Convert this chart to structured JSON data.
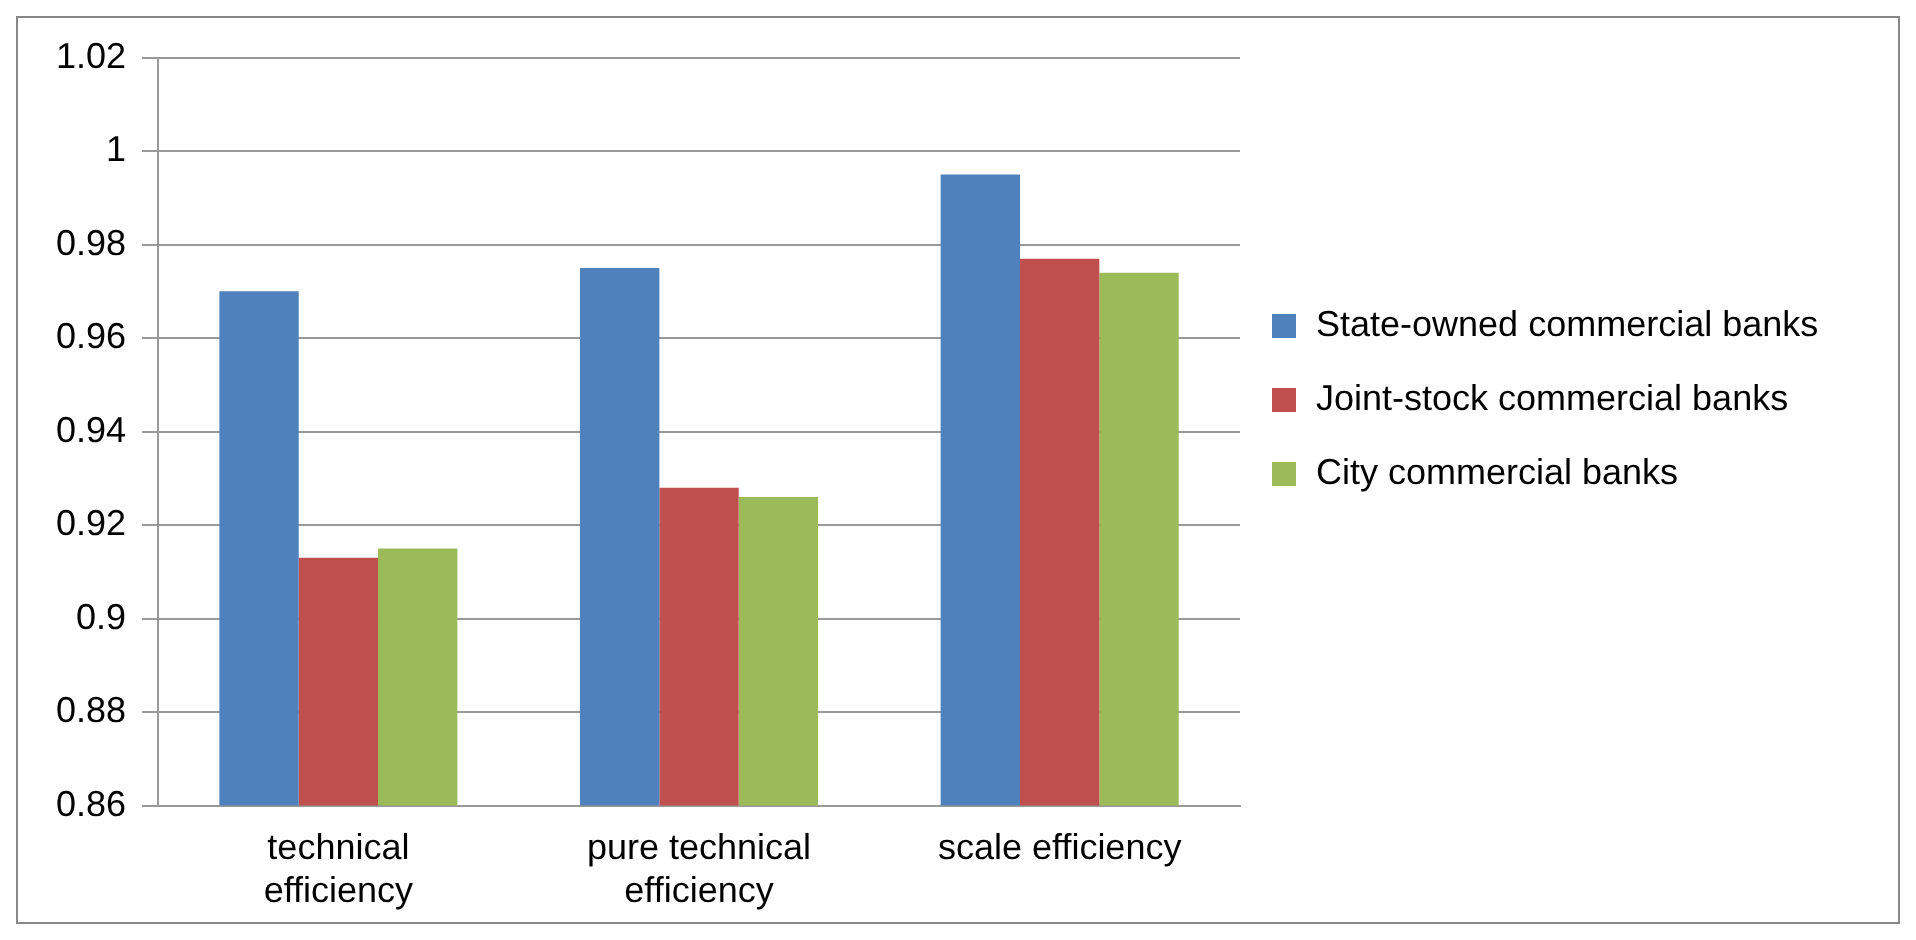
{
  "chart_data": {
    "type": "bar",
    "categories": [
      "technical efficiency",
      "pure technical efficiency",
      "scale efficiency"
    ],
    "series": [
      {
        "name": "State-owned commercial banks",
        "color": "#4f81bd",
        "values": [
          0.97,
          0.975,
          0.995
        ]
      },
      {
        "name": "Joint-stock commercial banks",
        "color": "#c0504d",
        "values": [
          0.913,
          0.928,
          0.977
        ]
      },
      {
        "name": "City commercial banks",
        "color": "#9bbb59",
        "values": [
          0.915,
          0.926,
          0.974
        ]
      }
    ],
    "ylim": [
      0.86,
      1.02
    ],
    "yticks": [
      0.86,
      0.88,
      0.9,
      0.92,
      0.94,
      0.96,
      0.98,
      1,
      1.02
    ],
    "grid": "y",
    "legend": "right"
  }
}
